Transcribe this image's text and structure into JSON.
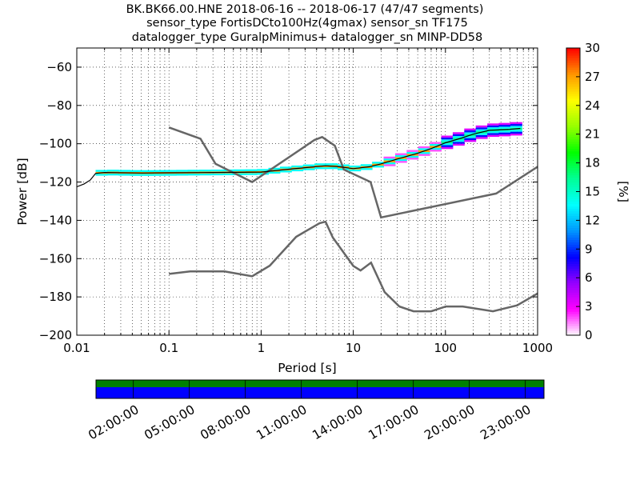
{
  "title": {
    "line1": "BK.BK66.00.HNE   2018-06-16 -- 2018-06-17  (47/47 segments)",
    "line2": "sensor_type FortisDCto100Hz(4gmax) sensor_sn TF175",
    "line3": "datalogger_type GuralpMinimus+ datalogger_sn MINP-DD58"
  },
  "chart_data": [
    {
      "type": "heatmap",
      "xlabel": "Period [s]",
      "ylabel": "Power [dB]",
      "xscale": "log",
      "xlim": [
        0.01,
        1000
      ],
      "ylim": [
        -200,
        -50
      ],
      "xticks": [
        0.01,
        0.1,
        1,
        10,
        100,
        1000
      ],
      "xtick_labels": [
        "0.01",
        "0.1",
        "1",
        "10",
        "100",
        "1000"
      ],
      "yticks": [
        -60,
        -80,
        -100,
        -120,
        -140,
        -160,
        -180,
        -200
      ],
      "ytick_labels": [
        "−60",
        "−80",
        "−100",
        "−120",
        "−140",
        "−160",
        "−180",
        "−200"
      ],
      "grid": "dotted",
      "colorbar": {
        "label": "[%]",
        "range": [
          0,
          30
        ],
        "ticks": [
          0,
          3,
          6,
          9,
          12,
          15,
          18,
          21,
          24,
          27,
          30
        ],
        "tick_labels": [
          "0",
          "3",
          "6",
          "9",
          "12",
          "15",
          "18",
          "21",
          "24",
          "27",
          "30"
        ],
        "colormap": [
          "#ffffff",
          "#ff00ff",
          "#9600ff",
          "#0000ff",
          "#0096ff",
          "#00ffff",
          "#00ff96",
          "#00ff00",
          "#96ff00",
          "#ffff00",
          "#ff9600",
          "#ff0000"
        ]
      },
      "noise_models": [
        {
          "role": "high",
          "color": "#666666",
          "points": [
            [
              0.1,
              -91.5
            ],
            [
              0.22,
              -97.4
            ],
            [
              0.32,
              -110.5
            ],
            [
              0.8,
              -120
            ],
            [
              3.8,
              -98
            ],
            [
              4.6,
              -96.5
            ],
            [
              6.3,
              -101
            ],
            [
              7.9,
              -113.5
            ],
            [
              15.4,
              -120
            ],
            [
              20,
              -138.5
            ],
            [
              354.8,
              -126
            ],
            [
              1000,
              -112
            ]
          ]
        },
        {
          "role": "low",
          "color": "#666666",
          "points": [
            [
              0.1,
              -168
            ],
            [
              0.17,
              -166.7
            ],
            [
              0.4,
              -166.7
            ],
            [
              0.8,
              -169.2
            ],
            [
              1.24,
              -163.7
            ],
            [
              2.4,
              -148.6
            ],
            [
              4.3,
              -141.5
            ],
            [
              5,
              -140.7
            ],
            [
              6,
              -149
            ],
            [
              10,
              -163.8
            ],
            [
              12,
              -166.2
            ],
            [
              15.6,
              -162.1
            ],
            [
              21.9,
              -177.5
            ],
            [
              31.6,
              -185
            ],
            [
              45,
              -187.5
            ],
            [
              70,
              -187.5
            ],
            [
              101,
              -185
            ],
            [
              154,
              -185
            ],
            [
              328,
              -187.5
            ],
            [
              600,
              -184.4
            ],
            [
              1000,
              -178.2
            ]
          ]
        }
      ],
      "mean_curve": {
        "color": "#000000",
        "points": [
          [
            0.01,
            -122.5
          ],
          [
            0.012,
            -121
          ],
          [
            0.014,
            -119
          ],
          [
            0.016,
            -115.5
          ],
          [
            0.02,
            -115
          ],
          [
            0.05,
            -115.3
          ],
          [
            0.1,
            -115.2
          ],
          [
            0.3,
            -115
          ],
          [
            1,
            -114.8
          ],
          [
            2,
            -113.3
          ],
          [
            3,
            -112.5
          ],
          [
            5,
            -111.5
          ],
          [
            7,
            -112
          ],
          [
            10,
            -113
          ],
          [
            15,
            -112
          ],
          [
            20,
            -110.5
          ],
          [
            30,
            -108
          ],
          [
            50,
            -105
          ],
          [
            70,
            -102.5
          ],
          [
            100,
            -99.5
          ],
          [
            150,
            -97
          ],
          [
            200,
            -95
          ],
          [
            300,
            -93
          ],
          [
            500,
            -92.5
          ],
          [
            650,
            -92
          ]
        ]
      },
      "time_coverage": {
        "tick_labels": [
          "02:00:00",
          "05:00:00",
          "08:00:00",
          "11:00:00",
          "14:00:00",
          "17:00:00",
          "20:00:00",
          "23:00:00"
        ],
        "tick_hours": [
          2,
          5,
          8,
          11,
          14,
          17,
          20,
          23
        ],
        "span_hours": [
          0,
          24
        ],
        "data_color": "#008000",
        "gap_free_color": "#0000ff"
      }
    }
  ]
}
